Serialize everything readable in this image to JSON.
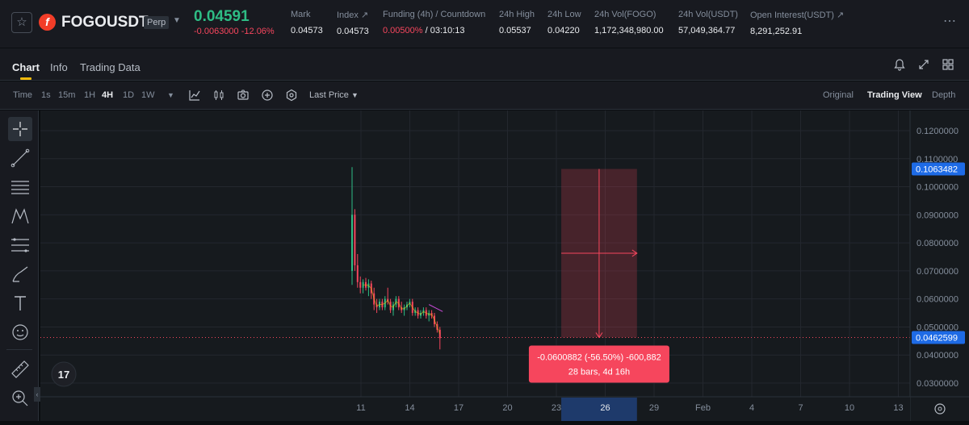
{
  "header": {
    "symbol": "FOGOUSDT",
    "badge": "Perp",
    "last_price": "0.04591",
    "change_abs": "-0.0063000",
    "change_pct": "-12.06%",
    "stats": [
      {
        "label": "Mark",
        "value": "0.04573"
      },
      {
        "label": "Index ↗",
        "value": "0.04573"
      },
      {
        "label": "Funding (4h) / Countdown",
        "value_red": "0.00500%",
        "value": " / 03:10:13"
      },
      {
        "label": "24h High",
        "value": "0.05537"
      },
      {
        "label": "24h Low",
        "value": "0.04220"
      },
      {
        "label": "24h Vol(FOGO)",
        "value": "1,172,348,980.00"
      },
      {
        "label": "24h Vol(USDT)",
        "value": "57,049,364.77"
      },
      {
        "label": "Open Interest(USDT) ↗",
        "value": "8,291,252.91"
      }
    ]
  },
  "tabs": [
    {
      "label": "Chart",
      "active": true
    },
    {
      "label": "Info",
      "active": false
    },
    {
      "label": "Trading Data",
      "active": false
    }
  ],
  "toolbar": {
    "time_label": "Time",
    "intervals": [
      "1s",
      "15m",
      "1H",
      "4H",
      "1D",
      "1W"
    ],
    "active_interval": "4H",
    "price_source": "Last Price",
    "views": [
      "Original",
      "Trading View",
      "Depth"
    ],
    "active_view": "Trading View"
  },
  "chart_data": {
    "type": "candlestick",
    "y_ticks": [
      "0.1200000",
      "0.1100000",
      "0.1000000",
      "0.0900000",
      "0.0800000",
      "0.0700000",
      "0.0600000",
      "0.0500000",
      "0.0400000",
      "0.0300000"
    ],
    "y_tick_values": [
      0.12,
      0.11,
      0.1,
      0.09,
      0.08,
      0.07,
      0.06,
      0.05,
      0.04,
      0.03
    ],
    "ylim": [
      0.025,
      0.1265
    ],
    "x_ticks": [
      "11",
      "14",
      "17",
      "20",
      "23",
      "26",
      "29",
      "Feb",
      "4",
      "7",
      "10",
      "13"
    ],
    "price_labels": [
      {
        "label": "0.1063482",
        "value": 0.1063482
      },
      {
        "label": "0.0462599",
        "value": 0.0462599
      }
    ],
    "current_price": 0.0462599,
    "measure_box": {
      "top_price": 0.1063482,
      "bottom_price": 0.0462599,
      "start_tick": "23",
      "end_tick": "29",
      "start_offset": 0.1,
      "end_offset": 0.65,
      "line1": "-0.0600882 (-56.50%) -600,882",
      "line2": "28 bars, 4d 16h",
      "highlighted_tick": "26"
    },
    "candles": [
      {
        "o": 0.07,
        "h": 0.107,
        "l": 0.065,
        "c": 0.09
      },
      {
        "o": 0.09,
        "h": 0.092,
        "l": 0.07,
        "c": 0.072
      },
      {
        "o": 0.072,
        "h": 0.076,
        "l": 0.064,
        "c": 0.066
      },
      {
        "o": 0.066,
        "h": 0.068,
        "l": 0.062,
        "c": 0.064
      },
      {
        "o": 0.064,
        "h": 0.067,
        "l": 0.062,
        "c": 0.066
      },
      {
        "o": 0.066,
        "h": 0.0675,
        "l": 0.063,
        "c": 0.064
      },
      {
        "o": 0.064,
        "h": 0.067,
        "l": 0.061,
        "c": 0.0655
      },
      {
        "o": 0.0655,
        "h": 0.0665,
        "l": 0.06,
        "c": 0.062
      },
      {
        "o": 0.062,
        "h": 0.064,
        "l": 0.056,
        "c": 0.058
      },
      {
        "o": 0.058,
        "h": 0.06,
        "l": 0.055,
        "c": 0.057
      },
      {
        "o": 0.057,
        "h": 0.06,
        "l": 0.056,
        "c": 0.059
      },
      {
        "o": 0.059,
        "h": 0.06,
        "l": 0.056,
        "c": 0.057
      },
      {
        "o": 0.057,
        "h": 0.061,
        "l": 0.056,
        "c": 0.06
      },
      {
        "o": 0.06,
        "h": 0.064,
        "l": 0.058,
        "c": 0.059
      },
      {
        "o": 0.059,
        "h": 0.06,
        "l": 0.055,
        "c": 0.056
      },
      {
        "o": 0.056,
        "h": 0.059,
        "l": 0.054,
        "c": 0.058
      },
      {
        "o": 0.058,
        "h": 0.061,
        "l": 0.057,
        "c": 0.06
      },
      {
        "o": 0.06,
        "h": 0.061,
        "l": 0.056,
        "c": 0.057
      },
      {
        "o": 0.057,
        "h": 0.059,
        "l": 0.055,
        "c": 0.056
      },
      {
        "o": 0.056,
        "h": 0.058,
        "l": 0.054,
        "c": 0.057
      },
      {
        "o": 0.057,
        "h": 0.059,
        "l": 0.056,
        "c": 0.058
      },
      {
        "o": 0.058,
        "h": 0.06,
        "l": 0.057,
        "c": 0.059
      },
      {
        "o": 0.059,
        "h": 0.06,
        "l": 0.054,
        "c": 0.055
      },
      {
        "o": 0.055,
        "h": 0.057,
        "l": 0.054,
        "c": 0.056
      },
      {
        "o": 0.056,
        "h": 0.057,
        "l": 0.053,
        "c": 0.054
      },
      {
        "o": 0.054,
        "h": 0.056,
        "l": 0.053,
        "c": 0.055
      },
      {
        "o": 0.055,
        "h": 0.057,
        "l": 0.054,
        "c": 0.056
      },
      {
        "o": 0.056,
        "h": 0.057,
        "l": 0.053,
        "c": 0.054
      },
      {
        "o": 0.054,
        "h": 0.056,
        "l": 0.052,
        "c": 0.055
      },
      {
        "o": 0.055,
        "h": 0.056,
        "l": 0.053,
        "c": 0.054
      },
      {
        "o": 0.054,
        "h": 0.055,
        "l": 0.05,
        "c": 0.051
      },
      {
        "o": 0.051,
        "h": 0.052,
        "l": 0.048,
        "c": 0.049
      },
      {
        "o": 0.049,
        "h": 0.05,
        "l": 0.042,
        "c": 0.046
      }
    ],
    "up_color": "#2ebd85",
    "down_color": "#f6465d"
  }
}
